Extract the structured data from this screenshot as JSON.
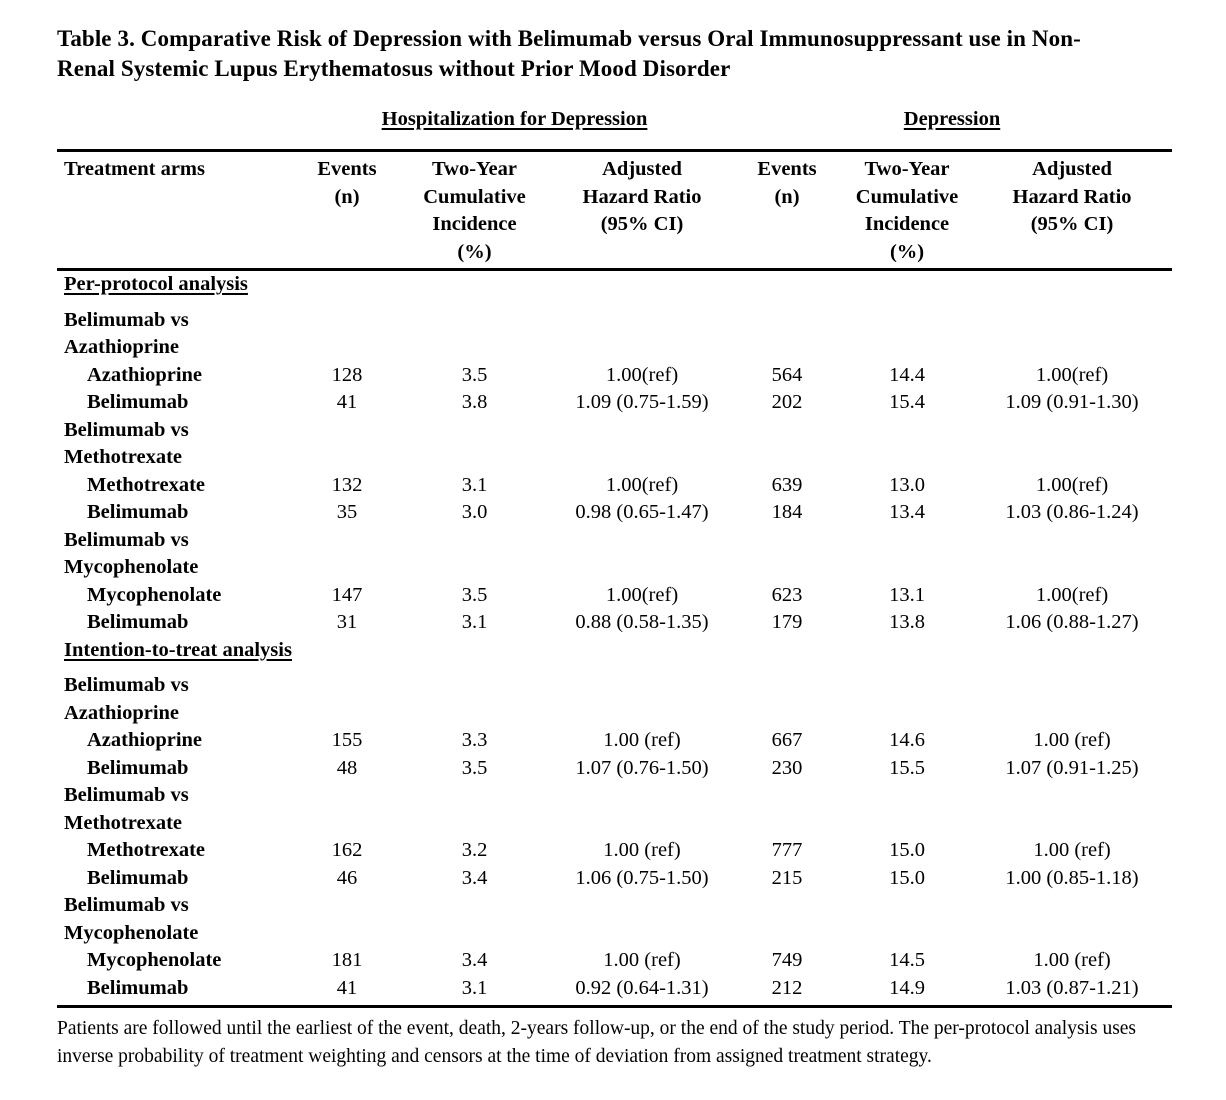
{
  "title": "Table 3. Comparative Risk of Depression with Belimumab versus Oral Immunosuppressant use in Non-Renal Systemic Lupus Erythematosus without Prior Mood Disorder",
  "group_headers": {
    "hospitalization_for_depression": "Hospitalization for Depression",
    "depression": "Depression"
  },
  "columns": {
    "treatment_arms": "Treatment arms",
    "events": "Events\n(n)",
    "cumulative_incidence": "Two-Year\nCumulative\nIncidence\n(%)",
    "hazard_ratio": "Adjusted\nHazard Ratio\n(95% CI)"
  },
  "sections": [
    {
      "label": "Per-protocol analysis",
      "groups": [
        {
          "comparison": "Belimumab vs\nAzathioprine",
          "rows": [
            {
              "arm": "Azathioprine",
              "values": [
                "128",
                "3.5",
                "1.00(ref)",
                "564",
                "14.4",
                "1.00(ref)"
              ]
            },
            {
              "arm": "Belimumab",
              "values": [
                "41",
                "3.8",
                "1.09 (0.75-1.59)",
                "202",
                "15.4",
                "1.09 (0.91-1.30)"
              ]
            }
          ]
        },
        {
          "comparison": "Belimumab vs\nMethotrexate",
          "rows": [
            {
              "arm": "Methotrexate",
              "values": [
                "132",
                "3.1",
                "1.00(ref)",
                "639",
                "13.0",
                "1.00(ref)"
              ]
            },
            {
              "arm": "Belimumab",
              "values": [
                "35",
                "3.0",
                "0.98 (0.65-1.47)",
                "184",
                "13.4",
                "1.03 (0.86-1.24)"
              ]
            }
          ]
        },
        {
          "comparison": "Belimumab vs\nMycophenolate",
          "rows": [
            {
              "arm": "Mycophenolate",
              "values": [
                "147",
                "3.5",
                "1.00(ref)",
                "623",
                "13.1",
                "1.00(ref)"
              ]
            },
            {
              "arm": "Belimumab",
              "values": [
                "31",
                "3.1",
                "0.88 (0.58-1.35)",
                "179",
                "13.8",
                "1.06 (0.88-1.27)"
              ]
            }
          ]
        }
      ]
    },
    {
      "label": "Intention-to-treat analysis",
      "groups": [
        {
          "comparison": "Belimumab vs\nAzathioprine",
          "rows": [
            {
              "arm": "Azathioprine",
              "values": [
                "155",
                "3.3",
                "1.00 (ref)",
                "667",
                "14.6",
                "1.00 (ref)"
              ]
            },
            {
              "arm": "Belimumab",
              "values": [
                "48",
                "3.5",
                "1.07 (0.76-1.50)",
                "230",
                "15.5",
                "1.07 (0.91-1.25)"
              ]
            }
          ]
        },
        {
          "comparison": "Belimumab vs\nMethotrexate",
          "rows": [
            {
              "arm": "Methotrexate",
              "values": [
                "162",
                "3.2",
                "1.00 (ref)",
                "777",
                "15.0",
                "1.00 (ref)"
              ]
            },
            {
              "arm": "Belimumab",
              "values": [
                "46",
                "3.4",
                "1.06 (0.75-1.50)",
                "215",
                "15.0",
                "1.00 (0.85-1.18)"
              ]
            }
          ]
        },
        {
          "comparison": "Belimumab vs\nMycophenolate",
          "rows": [
            {
              "arm": "Mycophenolate",
              "values": [
                "181",
                "3.4",
                "1.00 (ref)",
                "749",
                "14.5",
                "1.00 (ref)"
              ]
            },
            {
              "arm": "Belimumab",
              "values": [
                "41",
                "3.1",
                "0.92 (0.64-1.31)",
                "212",
                "14.9",
                "1.03 (0.87-1.21)"
              ]
            }
          ]
        }
      ]
    }
  ],
  "footnote": "Patients are followed until the earliest of the event, death, 2-years follow-up, or the end of the study period. The per-protocol analysis uses inverse probability of treatment weighting and censors at the time of deviation from assigned treatment strategy."
}
